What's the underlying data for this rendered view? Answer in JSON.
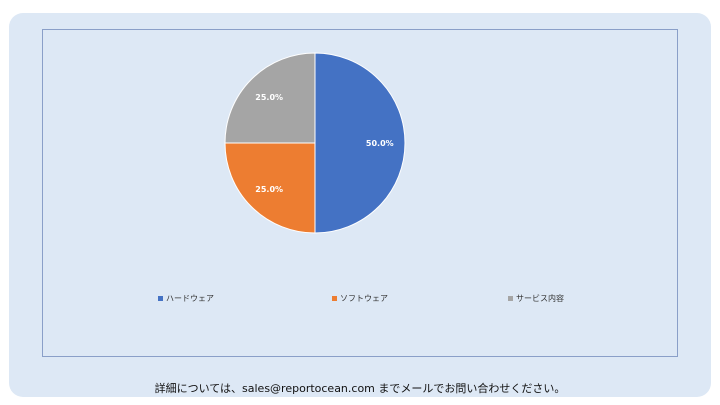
{
  "chart_data": {
    "type": "pie",
    "categories": [
      "ハードウェア",
      "ソフトウェア",
      "サービス内容"
    ],
    "values": [
      50.0,
      25.0,
      25.0
    ],
    "labels": [
      "50.0%",
      "25.0%",
      "25.0%"
    ],
    "colors": [
      "#4472c4",
      "#ed7d31",
      "#a5a5a5"
    ],
    "legend_position": "bottom",
    "title": ""
  },
  "footer": {
    "text": "詳細については、sales@reportocean.com までメールでお問い合わせください。"
  }
}
